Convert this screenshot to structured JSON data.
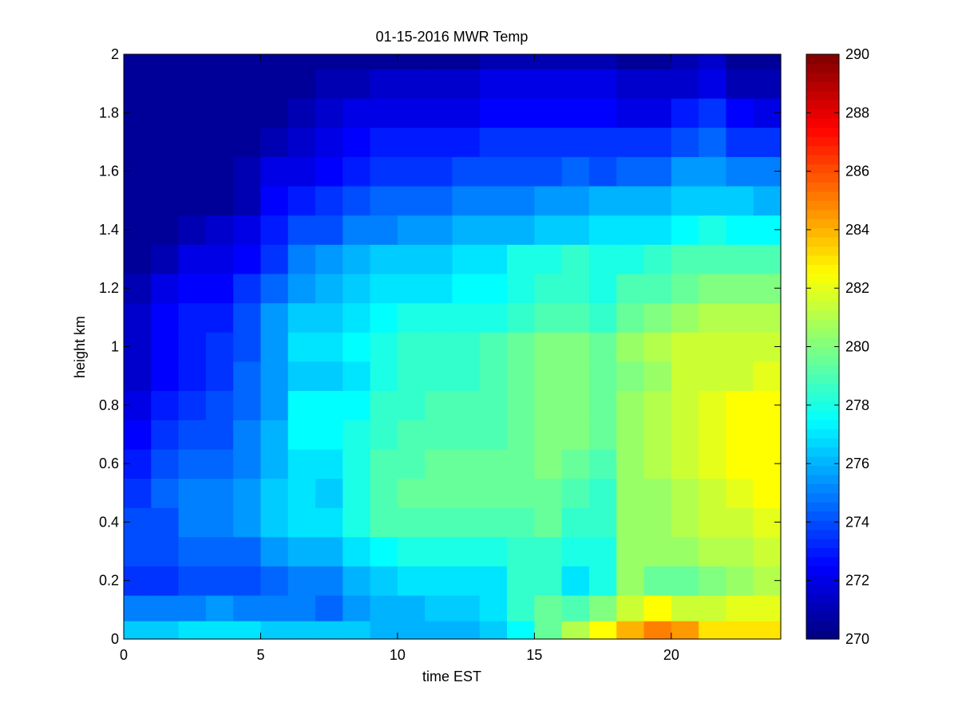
{
  "chart_data": {
    "type": "heatmap",
    "title": "01-15-2016 MWR Temp",
    "xlabel": "time EST",
    "ylabel": "height km",
    "xlim": [
      0,
      24
    ],
    "ylim": [
      0,
      2
    ],
    "x_ticks": [
      0,
      5,
      10,
      15,
      20
    ],
    "y_ticks": [
      0,
      0.2,
      0.4,
      0.6,
      0.8,
      1,
      1.2,
      1.4,
      1.6,
      1.8,
      2
    ],
    "colormap": "jet",
    "clim": [
      270,
      290
    ],
    "colorbar_ticks": [
      270,
      272,
      274,
      276,
      278,
      280,
      282,
      284,
      286,
      288,
      290
    ],
    "x_centers": [
      0.5,
      1.5,
      2.5,
      3.5,
      4.5,
      5.5,
      6.5,
      7.5,
      8.5,
      9.5,
      10.5,
      11.5,
      12.5,
      13.5,
      14.5,
      15.5,
      16.5,
      17.5,
      18.5,
      19.5,
      20.5,
      21.5,
      22.5,
      23.5
    ],
    "y_centers": [
      0.025,
      0.1,
      0.2,
      0.3,
      0.4,
      0.5,
      0.6,
      0.7,
      0.8,
      0.9,
      1.0,
      1.1,
      1.2,
      1.3,
      1.4,
      1.5,
      1.6,
      1.7,
      1.8,
      1.9,
      2.0
    ],
    "z": [
      [
        276.5,
        276.5,
        277,
        277,
        277,
        276.5,
        276.5,
        276.5,
        276.5,
        276,
        276,
        276,
        276,
        276.5,
        277.5,
        279.5,
        281,
        282.5,
        284,
        285,
        284.5,
        283,
        283,
        283
      ],
      [
        275,
        275,
        275,
        275.5,
        275,
        275,
        275,
        274.5,
        275.5,
        276,
        276,
        276.5,
        276.5,
        277,
        278.5,
        279.5,
        279,
        280,
        281.5,
        282.5,
        281.5,
        281.5,
        282,
        282
      ],
      [
        273.5,
        273.5,
        274,
        274,
        274,
        274.5,
        275,
        275,
        276,
        276.5,
        277,
        277,
        277,
        277,
        278.5,
        278.5,
        277,
        278,
        280.5,
        279.5,
        279.5,
        280,
        280.5,
        281
      ],
      [
        274,
        274,
        274.5,
        274.5,
        274.5,
        275.5,
        276,
        276,
        277,
        277.5,
        278,
        278,
        278,
        278,
        278.5,
        278.5,
        278,
        278,
        280.5,
        280.5,
        280.5,
        281,
        281,
        281.5
      ],
      [
        274,
        274,
        275,
        275,
        275.5,
        276.5,
        277,
        277,
        278,
        279,
        279,
        279,
        279,
        279,
        279,
        279.5,
        278.5,
        278.5,
        280.5,
        280.5,
        281,
        281.5,
        281.5,
        282
      ],
      [
        273.5,
        274.5,
        275,
        275,
        275.5,
        276.5,
        277,
        276.5,
        278,
        279,
        279.5,
        279.5,
        279.5,
        279.5,
        279.5,
        279.5,
        279,
        278.5,
        280.5,
        280.5,
        281,
        281.5,
        282,
        282.5
      ],
      [
        273,
        274,
        274.5,
        274.5,
        275,
        276,
        277,
        277,
        278,
        279,
        279,
        279.5,
        279.5,
        279.5,
        279.5,
        280,
        279.5,
        279,
        280.5,
        281,
        281.5,
        282,
        282.5,
        282.5
      ],
      [
        272.5,
        273.5,
        274,
        274,
        275,
        276,
        277.5,
        277.5,
        278,
        278.5,
        279,
        279,
        279,
        279,
        279.5,
        280,
        280,
        279.5,
        280.5,
        281,
        281.5,
        282,
        282.5,
        282.5
      ],
      [
        272,
        273,
        273.5,
        274,
        274.5,
        275.5,
        277.5,
        277.5,
        277.5,
        278.5,
        278.5,
        279,
        279,
        279,
        279.5,
        280,
        280,
        279.5,
        280.5,
        281,
        281.5,
        282,
        282.5,
        282.5
      ],
      [
        271.5,
        272.5,
        273,
        273.5,
        274.5,
        275.5,
        276.5,
        276.5,
        277,
        278,
        278.5,
        278.5,
        278.5,
        279,
        279.5,
        280,
        280,
        279.5,
        280,
        280.5,
        281.5,
        281.5,
        281.5,
        282
      ],
      [
        271.5,
        272.5,
        273,
        273.5,
        274,
        275.5,
        277,
        277,
        277.5,
        278,
        278.5,
        278.5,
        278.5,
        279,
        279.5,
        280,
        280,
        279.5,
        280.5,
        281,
        281.5,
        281.5,
        281.5,
        281.5
      ],
      [
        271.5,
        272.5,
        273,
        273,
        274,
        275.5,
        276.5,
        276.5,
        277,
        277.5,
        278,
        278,
        278,
        278,
        278.5,
        279,
        279,
        278.5,
        279.5,
        280,
        280.5,
        281,
        281,
        281
      ],
      [
        271,
        272,
        272.5,
        272.5,
        273.5,
        274.5,
        275.5,
        276,
        276.5,
        277,
        277,
        277,
        277.5,
        277.5,
        278,
        278.5,
        278.5,
        278,
        279,
        279,
        279.5,
        280,
        280,
        280
      ],
      [
        270.5,
        271,
        272,
        272,
        272.5,
        273.5,
        275,
        275.5,
        276,
        276.5,
        276.5,
        276.5,
        277,
        277,
        278,
        278,
        278.5,
        278,
        278,
        278.5,
        279,
        279,
        279,
        279
      ],
      [
        270.5,
        270.5,
        271,
        271.5,
        272,
        273,
        274,
        274,
        275,
        275,
        275.5,
        275.5,
        276,
        276,
        276,
        276.5,
        276.5,
        277,
        277,
        277,
        277.5,
        278,
        277.5,
        277.5
      ],
      [
        270.5,
        270.5,
        270.5,
        270.5,
        271,
        272.5,
        273,
        273.5,
        274,
        274.5,
        274.5,
        274.5,
        275,
        275,
        275,
        275.5,
        275.5,
        276,
        276,
        276,
        276.5,
        276.5,
        276.5,
        276
      ],
      [
        270.5,
        270.5,
        270.5,
        270.5,
        271,
        272,
        272,
        272.5,
        273,
        273.5,
        273.5,
        273.5,
        274,
        274,
        274,
        274,
        274.5,
        274,
        274.5,
        274.5,
        275.5,
        275.5,
        275,
        275
      ],
      [
        270.5,
        270.5,
        270.5,
        270.5,
        270.5,
        271,
        271.5,
        272,
        272.5,
        273,
        273,
        273,
        273,
        273.5,
        273.5,
        273.5,
        273.5,
        273.5,
        273.5,
        273.5,
        274,
        274.5,
        273.5,
        273.5
      ],
      [
        270.5,
        270.5,
        270.5,
        270.5,
        270.5,
        270.5,
        271,
        271.5,
        272,
        272,
        272,
        272,
        272,
        272.5,
        272.5,
        272.5,
        272.5,
        272.5,
        272,
        272,
        273,
        273.5,
        272.5,
        272
      ],
      [
        270.5,
        270.5,
        270.5,
        270.5,
        270.5,
        270.5,
        270.5,
        271,
        271,
        271.5,
        271.5,
        271.5,
        271.5,
        272,
        272,
        272,
        272,
        272,
        271.5,
        271.5,
        271.5,
        272,
        271,
        271
      ],
      [
        270.5,
        270.5,
        270.5,
        270.5,
        270.5,
        270.5,
        270.5,
        270.5,
        270.5,
        270.5,
        270.5,
        270.5,
        270.5,
        271,
        271,
        271,
        271,
        271,
        270.5,
        270.5,
        271,
        271.5,
        270.5,
        270.5
      ]
    ]
  }
}
